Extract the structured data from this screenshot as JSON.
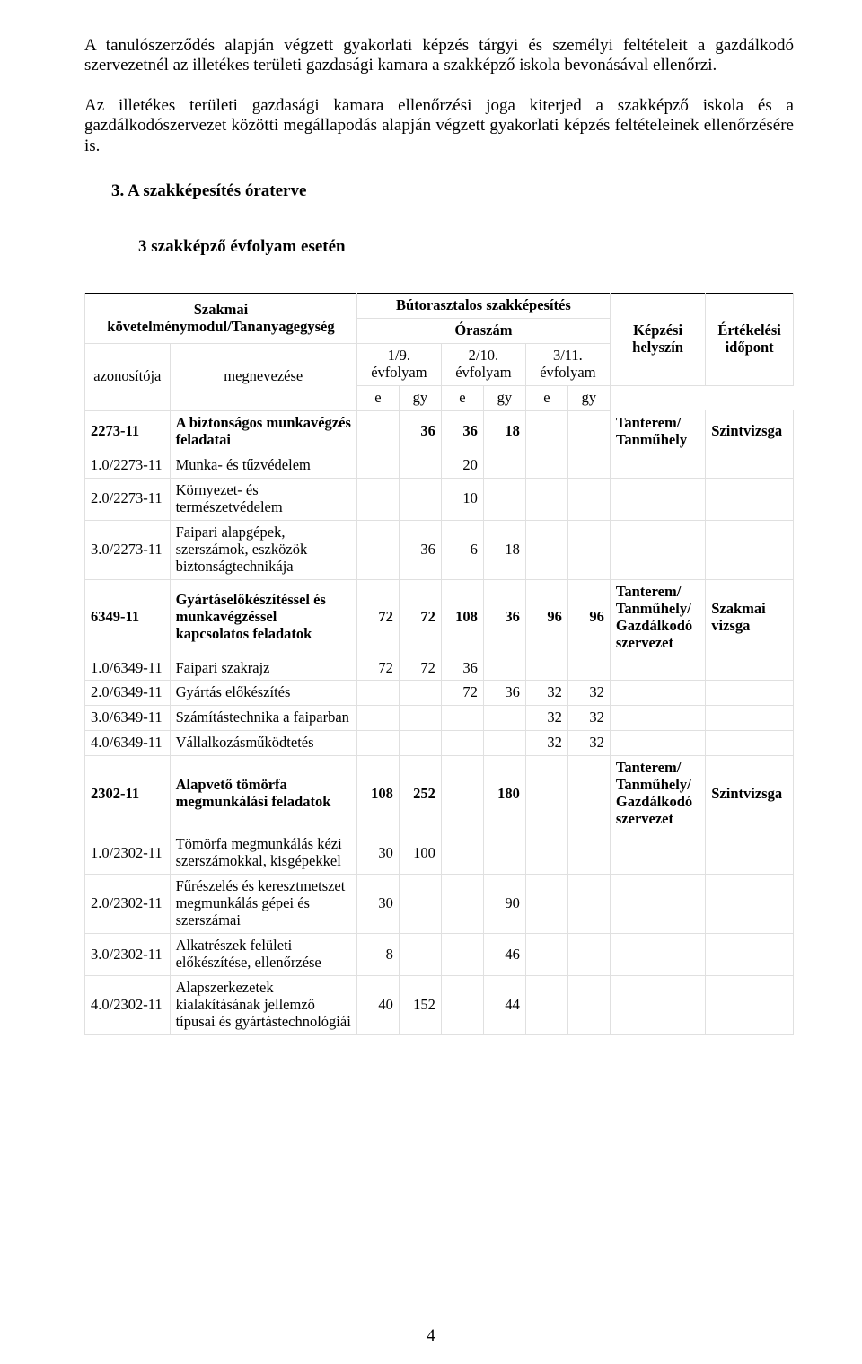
{
  "para1": "A tanulószerződés alapján végzett gyakorlati képzés tárgyi és személyi feltételeit a gazdálkodó szervezetnél az illetékes területi gazdasági kamara a szakképző iskola bevonásával ellenőrzi.",
  "para2": "Az illetékes területi gazdasági kamara ellenőrzési joga kiterjed a szakképző iskola és a gazdálkodószervezet közötti megállapodás alapján végzett gyakorlati képzés feltételeinek ellenőrzésére is.",
  "sectionHead": "3.  A szakképesítés óraterve",
  "subHead": "3 szakképző évfolyam esetén",
  "tableHead": {
    "top": "Bútorasztalos szakképesítés",
    "leftMain": "Szakmai követelménymodul/Tananyagegység",
    "oraszam": "Óraszám",
    "c1": "1/9. évfolyam",
    "c2": "2/10. évfolyam",
    "c3": "3/11. évfolyam",
    "helyszin": "Képzési helyszín",
    "idopont": "Értékelési időpont",
    "azon": "azonosítója",
    "megnev": "megnevezése",
    "e": "e",
    "gy": "gy"
  },
  "rows": [
    {
      "id": "2273-11",
      "name": "A biztonságos munkavégzés feladatai",
      "v": [
        "",
        "36",
        "36",
        "18",
        "",
        ""
      ],
      "loc": "Tanterem/\nTanműhely",
      "eval": "Szintvizsga",
      "bold": true
    },
    {
      "id": "1.0/2273-11",
      "name": "Munka- és tűzvédelem",
      "v": [
        "",
        "",
        "20",
        "",
        "",
        ""
      ],
      "loc": "",
      "eval": "",
      "bold": false
    },
    {
      "id": "2.0/2273-11",
      "name": "Környezet- és természetvédelem",
      "v": [
        "",
        "",
        "10",
        "",
        "",
        ""
      ],
      "loc": "",
      "eval": "",
      "bold": false
    },
    {
      "id": "3.0/2273-11",
      "name": "Faipari alapgépek, szerszámok, eszközök biztonságtechnikája",
      "v": [
        "",
        "36",
        "6",
        "18",
        "",
        ""
      ],
      "loc": "",
      "eval": "",
      "bold": false
    },
    {
      "id": "6349-11",
      "name": "Gyártáselőkészítéssel és munkavégzéssel kapcsolatos feladatok",
      "v": [
        "72",
        "72",
        "108",
        "36",
        "96",
        "96"
      ],
      "loc": "Tanterem/\nTanműhely/\nGazdálkodó szervezet",
      "eval": "Szakmai vizsga",
      "bold": true
    },
    {
      "id": "1.0/6349-11",
      "name": "Faipari szakrajz",
      "v": [
        "72",
        "72",
        "36",
        "",
        "",
        ""
      ],
      "loc": "",
      "eval": "",
      "bold": false
    },
    {
      "id": "2.0/6349-11",
      "name": "Gyártás előkészítés",
      "v": [
        "",
        "",
        "72",
        "36",
        "32",
        "32"
      ],
      "loc": "",
      "eval": "",
      "bold": false
    },
    {
      "id": "3.0/6349-11",
      "name": "Számítástechnika a faiparban",
      "v": [
        "",
        "",
        "",
        "",
        "32",
        "32"
      ],
      "loc": "",
      "eval": "",
      "bold": false
    },
    {
      "id": "4.0/6349-11",
      "name": "Vállalkozásműködtetés",
      "v": [
        "",
        "",
        "",
        "",
        "32",
        "32"
      ],
      "loc": "",
      "eval": "",
      "bold": false
    },
    {
      "id": "2302-11",
      "name": "Alapvető tömörfa megmunkálási feladatok",
      "v": [
        "108",
        "252",
        "",
        "180",
        "",
        ""
      ],
      "loc": "Tanterem/\nTanműhely/\nGazdálkodó szervezet",
      "eval": "Szintvizsga",
      "bold": true
    },
    {
      "id": "1.0/2302-11",
      "name": "Tömörfa megmunkálás kézi szerszámokkal, kisgépekkel",
      "v": [
        "30",
        "100",
        "",
        "",
        "",
        ""
      ],
      "loc": "",
      "eval": "",
      "bold": false
    },
    {
      "id": "2.0/2302-11",
      "name": "Fűrészelés és keresztmetszet megmunkálás gépei és szerszámai",
      "v": [
        "30",
        "",
        "",
        "90",
        "",
        ""
      ],
      "loc": "",
      "eval": "",
      "bold": false
    },
    {
      "id": "3.0/2302-11",
      "name": "Alkatrészek felületi előkészítése, ellenőrzése",
      "v": [
        "8",
        "",
        "",
        "46",
        "",
        ""
      ],
      "loc": "",
      "eval": "",
      "bold": false
    },
    {
      "id": "4.0/2302-11",
      "name": "Alapszerkezetek kialakításának jellemző típusai és gyártástechnológiái",
      "v": [
        "40",
        "152",
        "",
        "44",
        "",
        ""
      ],
      "loc": "",
      "eval": "",
      "bold": false
    }
  ],
  "pageNumber": "4"
}
